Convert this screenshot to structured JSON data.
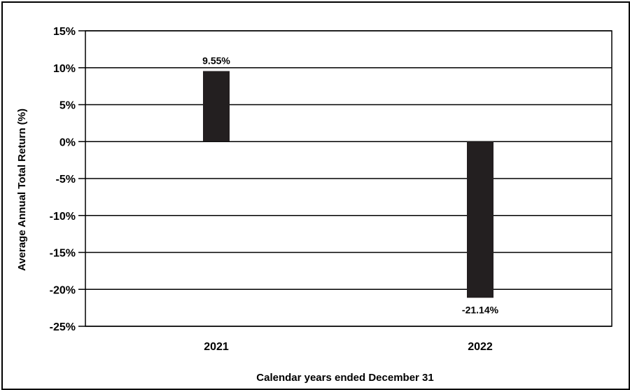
{
  "chart_data": {
    "type": "bar",
    "categories": [
      "2021",
      "2022"
    ],
    "values": [
      9.55,
      -21.14
    ],
    "value_labels": [
      "9.55%",
      "-21.14%"
    ],
    "ylabel": "Average Annual Total Return (%)",
    "xlabel": "Calendar years ended December 31",
    "ylim": [
      -25,
      15
    ],
    "yticks": [
      15,
      10,
      5,
      0,
      -5,
      -10,
      -15,
      -20,
      -25
    ],
    "ytick_labels": [
      "15%",
      "10%",
      "5%",
      "0%",
      "-5%",
      "-10%",
      "-15%",
      "-20%",
      "-25%"
    ],
    "grid": true,
    "bar_color": "#231f20"
  }
}
